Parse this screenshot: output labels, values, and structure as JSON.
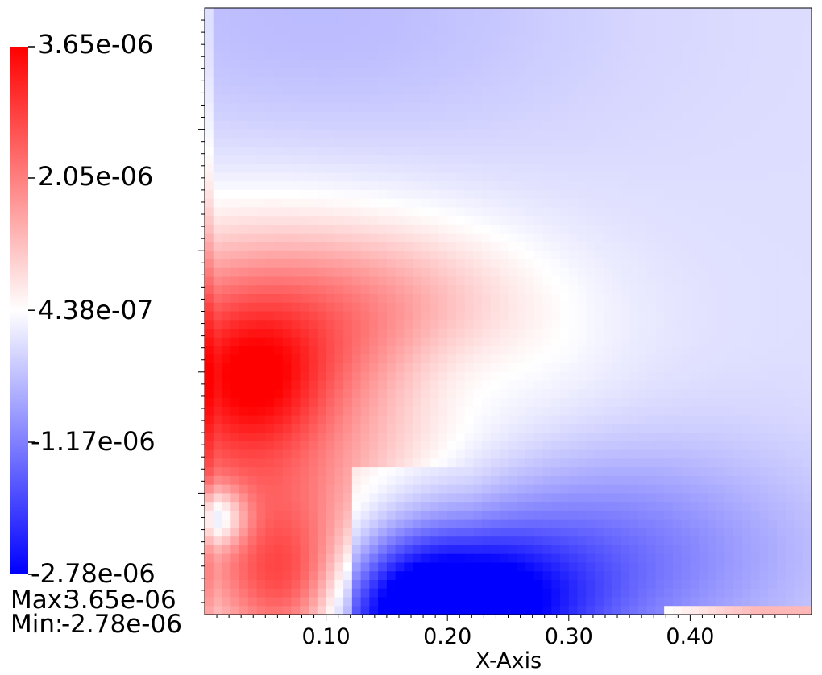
{
  "chart_data": {
    "type": "heatmap",
    "xlabel": "X-Axis",
    "xlim": [
      0,
      0.5
    ],
    "x_ticks": [
      "0.10",
      "0.20",
      "0.30",
      "0.40"
    ],
    "x_tick_values": [
      0.1,
      0.2,
      0.3,
      0.4
    ],
    "grid": false,
    "colorbar": {
      "min": -2.78e-06,
      "max": 3.65e-06,
      "low_color": "#0000ff",
      "mid_color": "#ffffff",
      "high_color": "#ff0000",
      "tick_labels": [
        "3.65e-06",
        "2.05e-06",
        "4.38e-07",
        "-1.17e-06",
        "-2.78e-06"
      ],
      "tick_values": [
        3.65e-06,
        2.05e-06,
        4.38e-07,
        -1.17e-06,
        -2.78e-06
      ]
    },
    "max_label": "Max:",
    "max_value": "3.65e-06",
    "min_label": "Min:",
    "min_value": "-2.78e-06"
  }
}
